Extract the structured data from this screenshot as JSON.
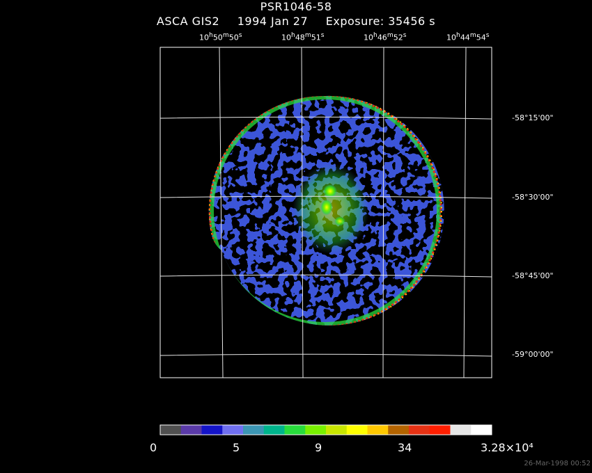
{
  "header": {
    "title": "PSR1046-58",
    "instrument": "ASCA GIS2",
    "date": "1994 Jan 27",
    "exposure": "Exposure: 35456 s"
  },
  "axes": {
    "ra_labels": [
      {
        "h": "10",
        "m": "50",
        "s": "50"
      },
      {
        "h": "10",
        "m": "48",
        "s": "51"
      },
      {
        "h": "10",
        "m": "46",
        "s": "52"
      },
      {
        "h": "10",
        "m": "44",
        "s": "54"
      }
    ],
    "dec_labels": [
      "-58°15'00\"",
      "-58°30'00\"",
      "-58°45'00\"",
      "-59°00'00\""
    ]
  },
  "colorbar": {
    "colors": [
      "#505050",
      "#5a3aa8",
      "#1414c8",
      "#7070f0",
      "#3c96b4",
      "#00b48c",
      "#28dc3c",
      "#78f000",
      "#c8e600",
      "#ffff00",
      "#ffc800",
      "#b46400",
      "#e63214",
      "#ff1e00",
      "#e6e6e6",
      "#ffffff"
    ],
    "tick_labels": [
      "0",
      "5",
      "9",
      "34",
      "3.28×10⁴"
    ]
  },
  "footer": {
    "timestamp": "26-Mar-1998 00:52"
  }
}
